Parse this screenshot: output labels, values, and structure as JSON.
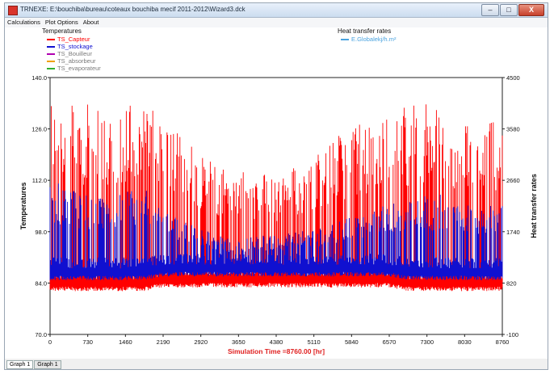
{
  "window": {
    "title": "TRNEXE: E:\\bouchiba\\bureau\\coteaux bouchiba mecif 2011-2012\\Wizard3.dck",
    "buttons": {
      "minimize": "–",
      "maximize": "□",
      "close": "X"
    }
  },
  "menu": {
    "items": [
      "Calculations",
      "Plot Options",
      "About"
    ]
  },
  "legend_left": {
    "title": "Temperatures",
    "items": [
      {
        "label": "TS_Capteur",
        "color": "#ff0000"
      },
      {
        "label": "TS_stockage",
        "color": "#1010d0"
      },
      {
        "label": "TS_Bouilleur",
        "color": "#b000b0"
      },
      {
        "label": "TS_absorbeur",
        "color": "#f0a000"
      },
      {
        "label": "TS_evaporateur",
        "color": "#30b030"
      }
    ]
  },
  "legend_right": {
    "title": "Heat transfer rates",
    "items": [
      {
        "label": "E.Globalekj/h.m²",
        "color": "#4aa3df"
      }
    ]
  },
  "chart_data": {
    "type": "line",
    "xlabel": "Simulation Time =8760.00 [hr]",
    "ylabel_left": "Temperatures",
    "ylabel_right": "Heat transfer rates",
    "xlim": [
      0,
      8760
    ],
    "ylim_left": [
      70.0,
      140.0
    ],
    "ylim_right": [
      -100,
      4500
    ],
    "x_ticks": [
      "0",
      "730",
      "1460",
      "2190",
      "2920",
      "3650",
      "4380",
      "5110",
      "5840",
      "6570",
      "7300",
      "8030",
      "8760"
    ],
    "y_ticks_left": [
      "70.0",
      "84.0",
      "98.0",
      "112.0",
      "126.0",
      "140.0"
    ],
    "y_ticks_right": [
      "-100",
      "820",
      "1740",
      "2660",
      "3580",
      "4500"
    ],
    "series": [
      {
        "name": "TS_Capteur",
        "color": "#ff0000",
        "envelope_x": [
          0,
          365,
          730,
          1095,
          1460,
          1825,
          2190,
          2555,
          2920,
          3285,
          3650,
          4015,
          4380,
          4745,
          5110,
          5475,
          5840,
          6205,
          6570,
          6935,
          7300,
          7665,
          8030,
          8395,
          8760
        ],
        "max": [
          135,
          134,
          133,
          131,
          134,
          135,
          128,
          124,
          121,
          117,
          114,
          115,
          113,
          116,
          120,
          123,
          127,
          128,
          131,
          133,
          133,
          132,
          130,
          129,
          127
        ],
        "min": [
          83,
          83,
          83,
          83,
          83,
          83,
          84,
          84,
          84,
          84,
          84,
          84,
          84,
          84,
          84,
          84,
          84,
          84,
          84,
          83,
          83,
          83,
          83,
          83,
          83
        ]
      },
      {
        "name": "TS_stockage",
        "color": "#1010d0",
        "envelope_x": [
          0,
          365,
          730,
          1095,
          1460,
          1825,
          2190,
          2555,
          2920,
          3285,
          3650,
          4015,
          4380,
          4745,
          5110,
          5475,
          5840,
          6205,
          6570,
          6935,
          7300,
          7665,
          8030,
          8395,
          8760
        ],
        "max": [
          113,
          110,
          108,
          107,
          109,
          110,
          104,
          101,
          99,
          97,
          96,
          97,
          97,
          98,
          99,
          100,
          102,
          103,
          106,
          107,
          108,
          109,
          107,
          106,
          106
        ],
        "min": [
          86,
          86,
          86,
          86,
          86,
          86,
          87,
          87,
          87,
          87,
          87,
          87,
          87,
          87,
          87,
          87,
          87,
          87,
          87,
          86,
          86,
          86,
          86,
          86,
          86
        ]
      }
    ]
  },
  "tabs": [
    "Graph 1",
    "Graph 1"
  ]
}
